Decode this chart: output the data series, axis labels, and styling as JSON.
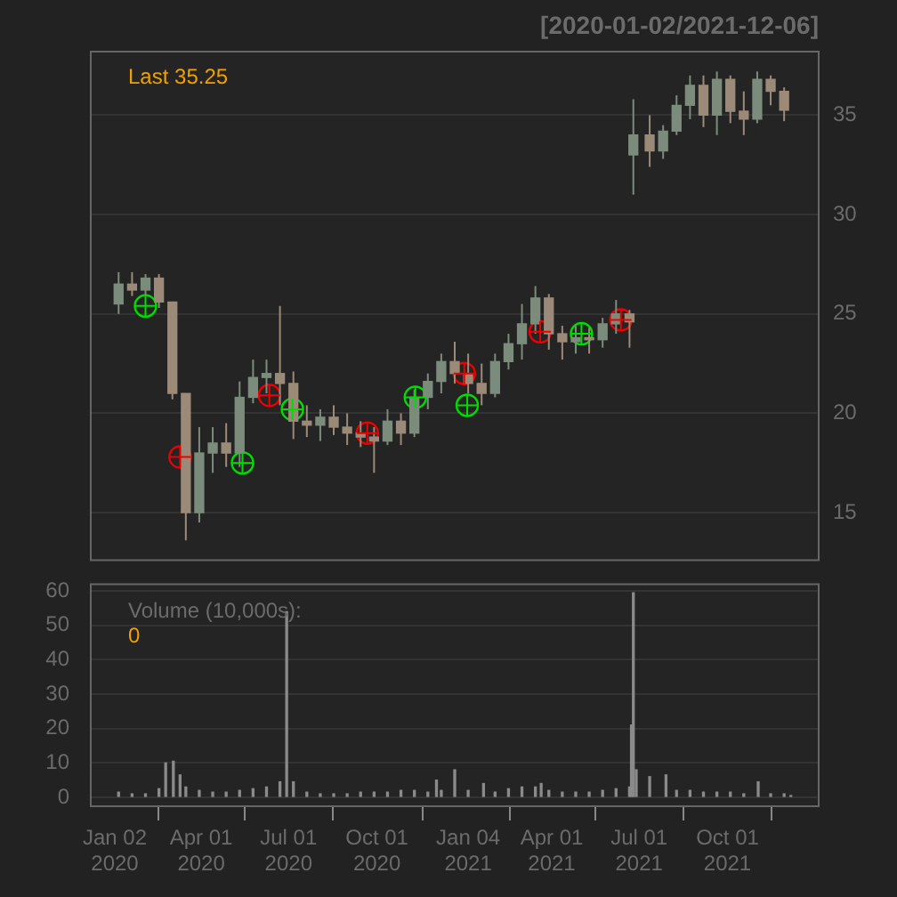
{
  "chart_data": [
    {
      "type": "candlestick",
      "title": "[2020-01-02/2021-12-06]",
      "annotations": [
        "Last 35.25"
      ],
      "colors": [
        "#7c8c7c",
        "#9c8a78",
        "#7c8c7c",
        "#9c8a78",
        "#9c8a78",
        "#9c8a78",
        "#7c8c7c",
        "#7c8c7c",
        "#9c8a78",
        "#7c8c7c",
        "#7c8c7c",
        "#7c8c7c",
        "#9c8a78",
        "#9c8a78",
        "#9c8a78",
        "#7c8c7c",
        "#9c8a78",
        "#9c8a78",
        "#9c8a78",
        "#9c8a78",
        "#7c8c7c",
        "#9c8a78",
        "#7c8c7c",
        "#7c8c7c",
        "#7c8c7c",
        "#9c8a78",
        "#9c8a78",
        "#9c8a78",
        "#7c8c7c",
        "#7c8c7c",
        "#7c8c7c",
        "#7c8c7c",
        "#9c8a78",
        "#9c8a78",
        "#7c8c7c",
        "#9c8a78",
        "#7c8c7c",
        "#7c8c7c",
        "#9c8a78",
        "#7c8c7c",
        "#9c8a78",
        "#7c8c7c",
        "#7c8c7c",
        "#7c8c7c",
        "#9c8a78",
        "#7c8c7c",
        "#9c8a78",
        "#9c8a78",
        "#7c8c7c",
        "#9c8a78",
        "#9c8a78"
      ],
      "x": [
        "2020-01-06",
        "2020-01-20",
        "2020-02-03",
        "2020-02-17",
        "2020-03-02",
        "2020-03-16",
        "2020-03-30",
        "2020-04-13",
        "2020-04-27",
        "2020-05-11",
        "2020-05-25",
        "2020-06-08",
        "2020-06-22",
        "2020-07-06",
        "2020-07-20",
        "2020-08-03",
        "2020-08-17",
        "2020-08-31",
        "2020-09-14",
        "2020-09-28",
        "2020-10-12",
        "2020-10-26",
        "2020-11-09",
        "2020-11-23",
        "2020-12-07",
        "2020-12-21",
        "2021-01-04",
        "2021-01-18",
        "2021-02-01",
        "2021-02-15",
        "2021-03-01",
        "2021-03-15",
        "2021-03-29",
        "2021-04-12",
        "2021-04-26",
        "2021-05-10",
        "2021-05-24",
        "2021-06-07",
        "2021-06-21",
        "2021-06-25",
        "2021-07-12",
        "2021-07-26",
        "2021-08-09",
        "2021-08-23",
        "2021-09-06",
        "2021-09-20",
        "2021-10-04",
        "2021-10-18",
        "2021-11-01",
        "2021-11-15",
        "2021-11-29"
      ],
      "ohlc": [
        [
          25.5,
          27.1,
          25.0,
          26.5
        ],
        [
          26.5,
          27.1,
          25.9,
          26.2
        ],
        [
          26.2,
          27.0,
          25.9,
          26.8
        ],
        [
          26.8,
          27.0,
          25.3,
          25.6
        ],
        [
          25.6,
          25.6,
          20.7,
          21.0
        ],
        [
          21.0,
          21.0,
          13.6,
          15.0
        ],
        [
          15.0,
          19.3,
          14.5,
          18.0
        ],
        [
          18.0,
          19.3,
          17.0,
          18.5
        ],
        [
          18.5,
          19.5,
          17.3,
          18.0
        ],
        [
          18.0,
          21.6,
          17.3,
          20.8
        ],
        [
          20.8,
          22.7,
          20.5,
          21.8
        ],
        [
          21.8,
          22.7,
          21.0,
          22.0
        ],
        [
          22.0,
          25.4,
          20.4,
          21.5
        ],
        [
          21.5,
          22.1,
          18.7,
          19.6
        ],
        [
          19.6,
          20.4,
          18.8,
          19.4
        ],
        [
          19.4,
          20.2,
          18.6,
          19.8
        ],
        [
          19.8,
          20.4,
          18.9,
          19.3
        ],
        [
          19.3,
          20.0,
          18.4,
          19.0
        ],
        [
          19.0,
          19.6,
          18.3,
          18.8
        ],
        [
          18.8,
          19.3,
          17.0,
          18.6
        ],
        [
          18.6,
          20.2,
          18.4,
          19.6
        ],
        [
          19.6,
          20.0,
          18.4,
          19.0
        ],
        [
          19.0,
          21.2,
          18.8,
          20.8
        ],
        [
          20.8,
          22.0,
          20.2,
          21.6
        ],
        [
          21.6,
          23.0,
          21.0,
          22.6
        ],
        [
          22.6,
          23.6,
          21.5,
          22.0
        ],
        [
          22.0,
          23.0,
          21.0,
          21.5
        ],
        [
          21.5,
          22.5,
          20.4,
          21.0
        ],
        [
          21.0,
          23.0,
          20.8,
          22.6
        ],
        [
          22.6,
          24.0,
          22.2,
          23.5
        ],
        [
          23.5,
          25.5,
          22.7,
          24.5
        ],
        [
          24.5,
          26.4,
          24.0,
          25.8
        ],
        [
          25.8,
          26.0,
          23.2,
          24.0
        ],
        [
          24.0,
          24.4,
          22.7,
          23.6
        ],
        [
          23.6,
          24.4,
          23.0,
          23.8
        ],
        [
          23.8,
          24.3,
          23.0,
          23.7
        ],
        [
          23.7,
          24.8,
          23.3,
          24.5
        ],
        [
          24.5,
          25.7,
          24.0,
          25.0
        ],
        [
          25.0,
          25.2,
          23.3,
          24.6
        ],
        [
          33.0,
          35.8,
          31.0,
          34.0
        ],
        [
          34.0,
          35.0,
          32.4,
          33.2
        ],
        [
          33.2,
          34.5,
          32.8,
          34.2
        ],
        [
          34.2,
          36.0,
          34.0,
          35.5
        ],
        [
          35.5,
          37.0,
          34.8,
          36.5
        ],
        [
          36.5,
          37.0,
          34.4,
          35.0
        ],
        [
          35.0,
          37.2,
          34.0,
          36.8
        ],
        [
          36.8,
          37.0,
          34.6,
          35.2
        ],
        [
          35.2,
          36.2,
          34.0,
          34.8
        ],
        [
          34.8,
          37.2,
          34.6,
          36.8
        ],
        [
          36.8,
          37.0,
          35.5,
          36.2
        ],
        [
          36.2,
          36.4,
          34.7,
          35.25
        ]
      ],
      "series": [
        {
          "type": "scatter",
          "color": "#00dd00",
          "x": [
            "2020-02-03",
            "2020-05-14",
            "2020-07-05",
            "2020-11-10",
            "2021-01-03",
            "2021-05-02"
          ],
          "values": [
            25.4,
            17.5,
            20.2,
            20.8,
            20.4,
            24.0
          ]
        },
        {
          "type": "scatter",
          "color": "#ee0000",
          "x": [
            "2020-03-10",
            "2020-06-11",
            "2020-09-21",
            "2020-12-31",
            "2021-03-20",
            "2021-06-12"
          ],
          "values": [
            17.8,
            20.9,
            19.0,
            22.0,
            24.1,
            24.7
          ]
        }
      ],
      "marker": "circle",
      "xlim": [
        "2019-12-08",
        "2022-01-04"
      ],
      "ylim": [
        12.6,
        38.2
      ],
      "yticks": [
        15,
        20,
        25,
        30,
        35
      ],
      "grid": "y",
      "tick_labels": "y"
    },
    {
      "type": "bar",
      "annotations": [
        "Volume (10,000s):",
        "0"
      ],
      "color": "#8a8a8a",
      "x": [
        "2020-01-06",
        "2020-01-20",
        "2020-02-03",
        "2020-02-17",
        "2020-02-24",
        "2020-03-03",
        "2020-03-10",
        "2020-03-16",
        "2020-03-30",
        "2020-04-13",
        "2020-04-27",
        "2020-05-11",
        "2020-05-25",
        "2020-06-08",
        "2020-06-22",
        "2020-06-29",
        "2020-07-06",
        "2020-07-20",
        "2020-08-03",
        "2020-08-17",
        "2020-08-31",
        "2020-09-14",
        "2020-09-28",
        "2020-10-12",
        "2020-10-26",
        "2020-11-09",
        "2020-11-23",
        "2020-12-02",
        "2020-12-07",
        "2020-12-21",
        "2021-01-04",
        "2021-01-20",
        "2021-02-01",
        "2021-02-15",
        "2021-03-01",
        "2021-03-15",
        "2021-03-21",
        "2021-03-29",
        "2021-04-12",
        "2021-04-26",
        "2021-05-10",
        "2021-05-24",
        "2021-06-07",
        "2021-06-21",
        "2021-06-23",
        "2021-06-25",
        "2021-06-28",
        "2021-07-12",
        "2021-07-29",
        "2021-08-09",
        "2021-08-23",
        "2021-09-06",
        "2021-09-20",
        "2021-10-04",
        "2021-10-18",
        "2021-11-02",
        "2021-11-15",
        "2021-11-29",
        "2021-12-06"
      ],
      "values": [
        1.5,
        1,
        1,
        2.5,
        10,
        10.5,
        6.5,
        3,
        2,
        1.5,
        1.5,
        2,
        2.5,
        3,
        4.5,
        54,
        4.5,
        1.5,
        1,
        1,
        1,
        1.5,
        1.5,
        1.5,
        2,
        2,
        1.5,
        5,
        2,
        8,
        2,
        4,
        1.5,
        2.5,
        3,
        3,
        4,
        2,
        1.5,
        1.5,
        1.5,
        2,
        2.5,
        3,
        21,
        59.5,
        8,
        6,
        6.5,
        2,
        2,
        1.5,
        1.5,
        1.5,
        1,
        4.5,
        1,
        1,
        0.5
      ],
      "xlim": [
        "2019-12-08",
        "2022-01-04"
      ],
      "xticks": [
        {
          "value": "2020-01-02",
          "label": "Jan 02\n2020"
        },
        {
          "value": "2020-04-01",
          "label": "Apr 01\n2020"
        },
        {
          "value": "2020-07-01",
          "label": "Jul 01\n2020"
        },
        {
          "value": "2020-10-01",
          "label": "Oct 01\n2020"
        },
        {
          "value": "2021-01-04",
          "label": "Jan 04\n2021"
        },
        {
          "value": "2021-04-01",
          "label": "Apr 01\n2021"
        },
        {
          "value": "2021-07-01",
          "label": "Jul 01\n2021"
        },
        {
          "value": "2021-10-01",
          "label": "Oct 01\n2021"
        }
      ],
      "ylim": [
        -2.6,
        62
      ],
      "yticks": [
        0,
        10,
        20,
        30,
        40,
        50,
        60
      ],
      "grid": "y"
    }
  ]
}
